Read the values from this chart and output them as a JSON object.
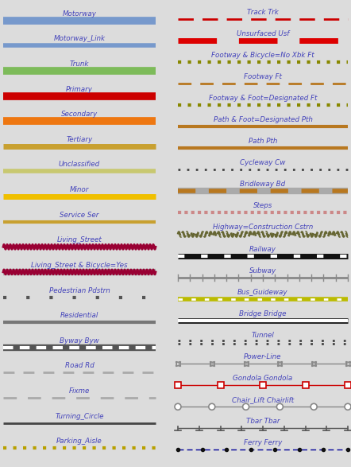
{
  "bg_color": "#dcdcdc",
  "label_color": "#4444bb",
  "figsize": [
    4.42,
    5.87
  ],
  "dpi": 100,
  "left_items": [
    {
      "label": "Motorway",
      "style": "solid",
      "color": "#7799cc",
      "lw": 7
    },
    {
      "label": "Motorway_Link",
      "style": "solid",
      "color": "#7799cc",
      "lw": 4
    },
    {
      "label": "Trunk",
      "style": "solid",
      "color": "#7dbb5a",
      "lw": 7
    },
    {
      "label": "Primary",
      "style": "solid",
      "color": "#cc0000",
      "lw": 7
    },
    {
      "label": "Secondary",
      "style": "solid",
      "color": "#ee7711",
      "lw": 7
    },
    {
      "label": "Tertiary",
      "style": "solid",
      "color": "#c8a030",
      "lw": 5
    },
    {
      "label": "Unclassified",
      "style": "solid",
      "color": "#c8c870",
      "lw": 4
    },
    {
      "label": "Minor",
      "style": "solid",
      "color": "#f0c000",
      "lw": 5
    },
    {
      "label": "Service Ser",
      "style": "solid",
      "color": "#c8a030",
      "lw": 3
    },
    {
      "label": "Living_Street",
      "style": "wavy",
      "color": "#990033",
      "lw": 2
    },
    {
      "label": "Living_Street & Bicycle=Yes",
      "style": "wavy_gray",
      "color": "#990033",
      "lw": 2
    },
    {
      "label": "Pedestrian Pdstrn",
      "style": "dot_spaced",
      "color": "#555555",
      "lw": 3
    },
    {
      "label": "Residential",
      "style": "solid",
      "color": "#777777",
      "lw": 3
    },
    {
      "label": "Byway Byw",
      "style": "byway",
      "color": "#666666",
      "lw": 6
    },
    {
      "label": "Road Rd",
      "style": "dash_light",
      "color": "#aaaaaa",
      "lw": 2
    },
    {
      "label": "Fixme",
      "style": "dash_light2",
      "color": "#aaaaaa",
      "lw": 2
    },
    {
      "label": "Turning_Circle",
      "style": "solid",
      "color": "#444444",
      "lw": 2
    },
    {
      "label": "Parking_Aisle",
      "style": "dot_dense_gold",
      "color": "#b8a000",
      "lw": 3
    }
  ],
  "right_items": [
    {
      "label": "Track Trk",
      "style": "dash_red",
      "color": "#cc0000",
      "lw": 2
    },
    {
      "label": "Unsurfaced Usf",
      "style": "dash_red_thick",
      "color": "#dd0000",
      "lw": 5
    },
    {
      "label": "Footway & Bicycle=No Xbk Ft",
      "style": "dot_olive",
      "color": "#888800",
      "lw": 3
    },
    {
      "label": "Footway Ft",
      "style": "dash_brown",
      "color": "#b87820",
      "lw": 2
    },
    {
      "label": "Footway & Foot=Designated Ft",
      "style": "dot_olive",
      "color": "#888800",
      "lw": 3
    },
    {
      "label": "Path & Foot=Designated Pth",
      "style": "solid",
      "color": "#b87820",
      "lw": 3
    },
    {
      "label": "Path Pth",
      "style": "solid",
      "color": "#b87820",
      "lw": 3
    },
    {
      "label": "Cycleway Cw",
      "style": "dot_dark",
      "color": "#444444",
      "lw": 2
    },
    {
      "label": "Bridleway Bd",
      "style": "bridleway",
      "color": "#b87820",
      "lw": 4
    },
    {
      "label": "Steps",
      "style": "steps",
      "color": "#cc8888",
      "lw": 3
    },
    {
      "label": "Highway=Construction Cstrn",
      "style": "wavy_olive",
      "color": "#666633",
      "lw": 2
    },
    {
      "label": "Railway",
      "style": "railway",
      "color": "#111111",
      "lw": 5
    },
    {
      "label": "Subway",
      "style": "subway",
      "color": "#888888",
      "lw": 2
    },
    {
      "label": "Bus_Guideway",
      "style": "bus_guideway",
      "color": "#bbbb00",
      "lw": 4
    },
    {
      "label": "Bridge Bridge",
      "style": "bridge",
      "color": "#111111",
      "lw": 5
    },
    {
      "label": "Tunnel",
      "style": "tunnel",
      "color": "#444444",
      "lw": 2
    },
    {
      "label": "Power-Line",
      "style": "powerline",
      "color": "#888888",
      "lw": 1
    },
    {
      "label": "Gondola Gondola",
      "style": "gondola",
      "color": "#cc0000",
      "lw": 1
    },
    {
      "label": "Chair_Lift Chairlift",
      "style": "chairlift",
      "color": "#888888",
      "lw": 1
    },
    {
      "label": "Tbar Tbar",
      "style": "tbar",
      "color": "#555555",
      "lw": 1
    },
    {
      "label": "Ferry Ferry",
      "style": "ferry",
      "color": "#000099",
      "lw": 1
    }
  ]
}
